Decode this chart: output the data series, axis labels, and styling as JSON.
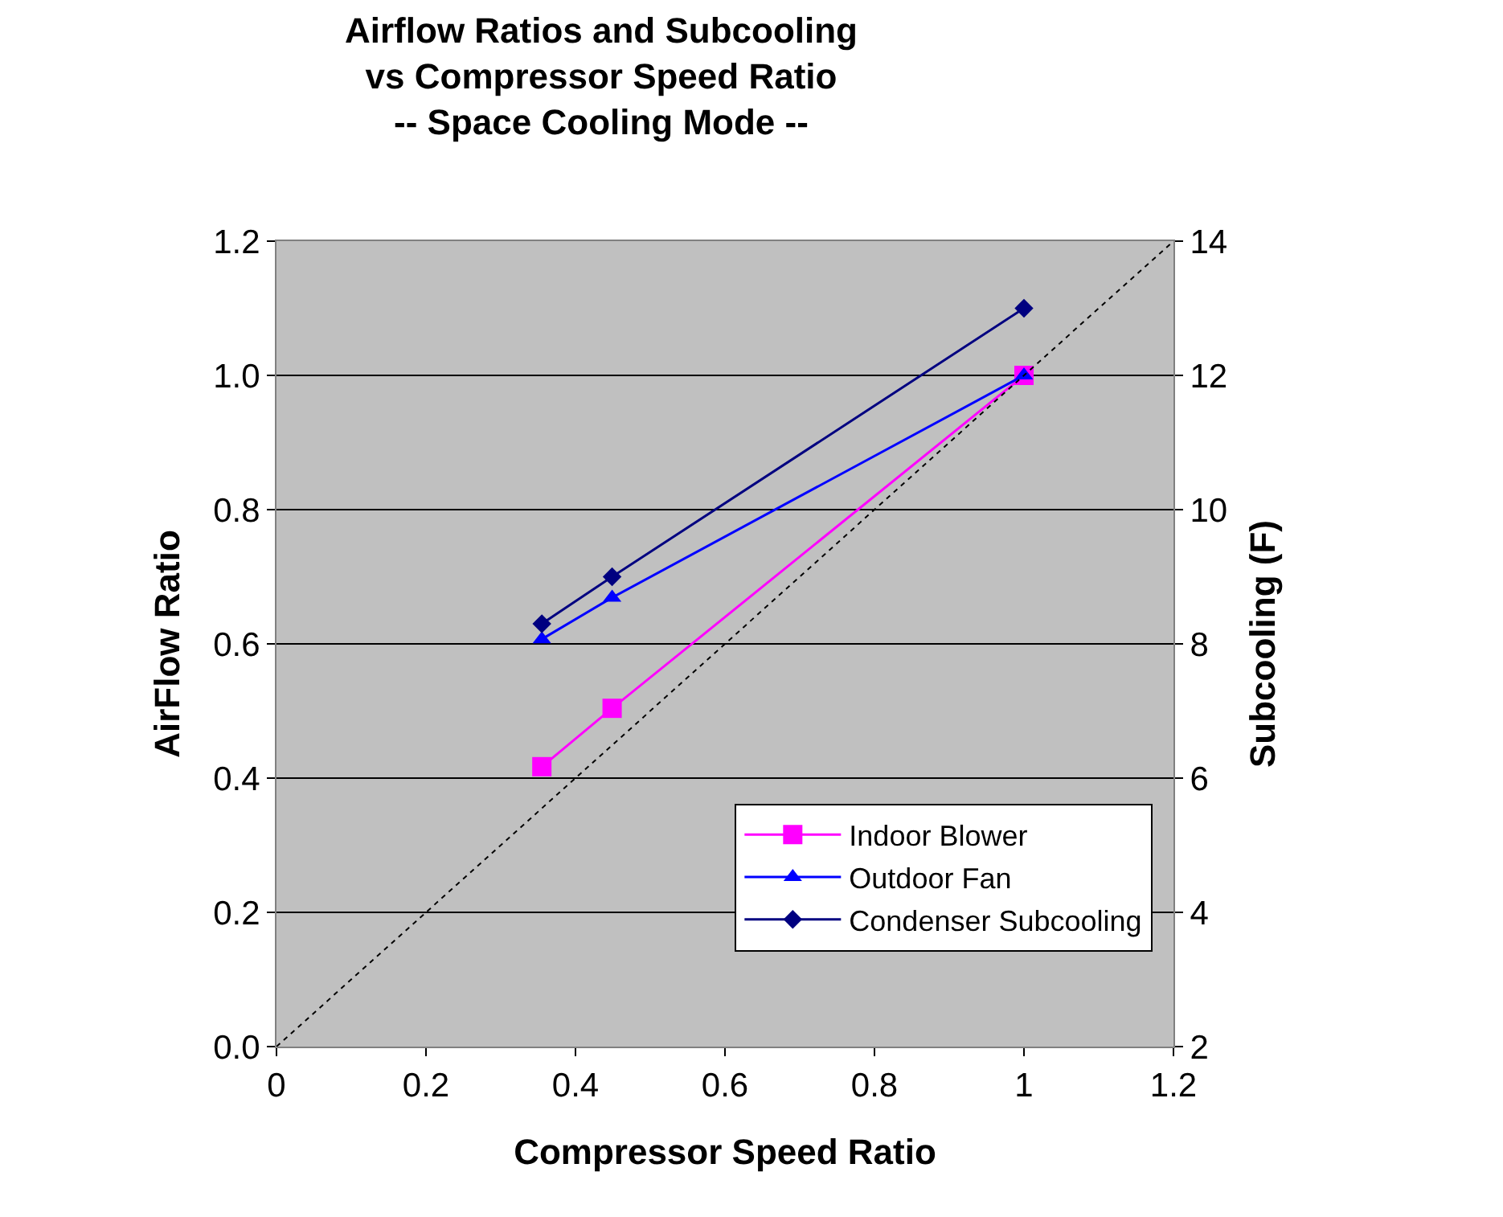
{
  "chart_data": {
    "type": "line",
    "title": "Airflow Ratios and Subcooling\nvs Compressor Speed Ratio\n-- Space Cooling Mode --",
    "xlabel": "Compressor Speed Ratio",
    "ylabel": "AirFlow Ratio",
    "y2label": "Subcooling (F)",
    "series": [
      {
        "name": "Indoor Blower",
        "color": "#ff00ff",
        "marker": "square",
        "x": [
          0.355,
          0.449,
          1.0
        ],
        "values": [
          0.417,
          0.504,
          1.0
        ]
      },
      {
        "name": "Outdoor Fan",
        "color": "#0000ff",
        "marker": "triangle",
        "x": [
          0.355,
          0.449,
          1.0
        ],
        "values": [
          0.607,
          0.669,
          1.0
        ]
      },
      {
        "name": "Condenser Subcooling",
        "color": "#000080",
        "marker": "diamond",
        "axis": "y2",
        "x": [
          0.355,
          0.449,
          1.0
        ],
        "values": [
          8.3,
          9.0,
          13.0
        ]
      },
      {
        "color": "#000000",
        "marker": "none",
        "line_style": "dotted",
        "x": [
          0,
          1.2
        ],
        "values": [
          0,
          1.2
        ]
      }
    ],
    "xlim": [
      0,
      1.2
    ],
    "xticks": [
      0,
      0.2,
      0.4,
      0.6,
      0.8,
      1,
      1.2
    ],
    "ylim": [
      0,
      1.2
    ],
    "yticks": [
      {
        "value": 0,
        "label": "0.0"
      },
      {
        "value": 0.2,
        "label": "0.2"
      },
      {
        "value": 0.4,
        "label": "0.4"
      },
      {
        "value": 0.6,
        "label": "0.6"
      },
      {
        "value": 0.8,
        "label": "0.8"
      },
      {
        "value": 1,
        "label": "1.0"
      },
      {
        "value": 1.2,
        "label": "1.2"
      }
    ],
    "y2lim": [
      2,
      14
    ],
    "y2ticks": [
      2,
      4,
      6,
      8,
      10,
      12,
      14
    ],
    "grid": "y",
    "legend": "bottom right"
  }
}
